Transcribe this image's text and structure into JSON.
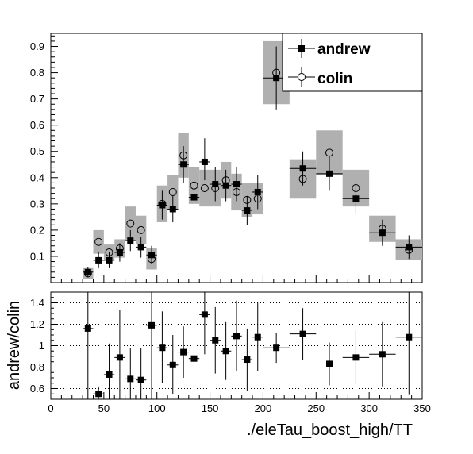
{
  "chart_data": [
    {
      "type": "scatter",
      "panel": "main",
      "xlim": [
        0,
        350
      ],
      "ylim": [
        0,
        0.95
      ],
      "yticks": [
        "0.1",
        "0.2",
        "0.3",
        "0.4",
        "0.5",
        "0.6",
        "0.7",
        "0.8",
        "0.9"
      ],
      "legend": {
        "position": "top-right",
        "entries": [
          "andrew",
          "colin"
        ]
      },
      "series": [
        {
          "name": "andrew",
          "marker": "filled-square",
          "points": [
            {
              "x": 35,
              "y": 0.04,
              "xerr": 5,
              "ylo": 0.02,
              "yhi": 0.06
            },
            {
              "x": 45,
              "y": 0.085,
              "xerr": 5,
              "ylo": 0.055,
              "yhi": 0.115
            },
            {
              "x": 55,
              "y": 0.085,
              "xerr": 5,
              "ylo": 0.055,
              "yhi": 0.115
            },
            {
              "x": 65,
              "y": 0.115,
              "xerr": 5,
              "ylo": 0.08,
              "yhi": 0.15
            },
            {
              "x": 75,
              "y": 0.16,
              "xerr": 5,
              "ylo": 0.12,
              "yhi": 0.2
            },
            {
              "x": 85,
              "y": 0.135,
              "xerr": 5,
              "ylo": 0.095,
              "yhi": 0.175
            },
            {
              "x": 95,
              "y": 0.105,
              "xerr": 5,
              "ylo": 0.07,
              "yhi": 0.14
            },
            {
              "x": 105,
              "y": 0.295,
              "xerr": 5,
              "ylo": 0.24,
              "yhi": 0.35
            },
            {
              "x": 115,
              "y": 0.28,
              "xerr": 5,
              "ylo": 0.23,
              "yhi": 0.33
            },
            {
              "x": 125,
              "y": 0.45,
              "xerr": 5,
              "ylo": 0.38,
              "yhi": 0.52
            },
            {
              "x": 135,
              "y": 0.325,
              "xerr": 5,
              "ylo": 0.27,
              "yhi": 0.38
            },
            {
              "x": 145,
              "y": 0.46,
              "xerr": 5,
              "ylo": 0.39,
              "yhi": 0.55
            },
            {
              "x": 155,
              "y": 0.375,
              "xerr": 5,
              "ylo": 0.31,
              "yhi": 0.44
            },
            {
              "x": 165,
              "y": 0.37,
              "xerr": 5,
              "ylo": 0.31,
              "yhi": 0.43
            },
            {
              "x": 175,
              "y": 0.375,
              "xerr": 5,
              "ylo": 0.31,
              "yhi": 0.44
            },
            {
              "x": 185,
              "y": 0.275,
              "xerr": 5,
              "ylo": 0.22,
              "yhi": 0.33
            },
            {
              "x": 195,
              "y": 0.345,
              "xerr": 5,
              "ylo": 0.28,
              "yhi": 0.41
            },
            {
              "x": 212.5,
              "y": 0.78,
              "xerr": 12.5,
              "ylo": 0.66,
              "yhi": 0.9
            },
            {
              "x": 237.5,
              "y": 0.435,
              "xerr": 12.5,
              "ylo": 0.37,
              "yhi": 0.5
            },
            {
              "x": 262.5,
              "y": 0.415,
              "xerr": 12.5,
              "ylo": 0.35,
              "yhi": 0.48
            },
            {
              "x": 287.5,
              "y": 0.32,
              "xerr": 12.5,
              "ylo": 0.26,
              "yhi": 0.38
            },
            {
              "x": 312.5,
              "y": 0.19,
              "xerr": 12.5,
              "ylo": 0.14,
              "yhi": 0.24
            },
            {
              "x": 337.5,
              "y": 0.135,
              "xerr": 12.5,
              "ylo": 0.09,
              "yhi": 0.18
            }
          ]
        },
        {
          "name": "colin",
          "marker": "open-circle",
          "points": [
            {
              "x": 35,
              "y": 0.035,
              "band": [
                0.015,
                0.055
              ]
            },
            {
              "x": 45,
              "y": 0.155,
              "band": [
                0.11,
                0.2
              ]
            },
            {
              "x": 55,
              "y": 0.115,
              "band": [
                0.085,
                0.145
              ]
            },
            {
              "x": 65,
              "y": 0.13,
              "band": [
                0.095,
                0.165
              ]
            },
            {
              "x": 75,
              "y": 0.225,
              "band": [
                0.16,
                0.29
              ]
            },
            {
              "x": 85,
              "y": 0.2,
              "band": [
                0.145,
                0.255
              ]
            },
            {
              "x": 95,
              "y": 0.09,
              "band": [
                0.05,
                0.13
              ]
            },
            {
              "x": 105,
              "y": 0.3,
              "band": [
                0.23,
                0.37
              ]
            },
            {
              "x": 115,
              "y": 0.345,
              "band": [
                0.28,
                0.41
              ]
            },
            {
              "x": 125,
              "y": 0.485,
              "band": [
                0.4,
                0.57
              ]
            },
            {
              "x": 135,
              "y": 0.37,
              "band": [
                0.3,
                0.44
              ]
            },
            {
              "x": 145,
              "y": 0.36,
              "band": [
                0.29,
                0.43
              ]
            },
            {
              "x": 155,
              "y": 0.36,
              "band": [
                0.29,
                0.43
              ]
            },
            {
              "x": 165,
              "y": 0.39,
              "band": [
                0.32,
                0.46
              ]
            },
            {
              "x": 175,
              "y": 0.345,
              "band": [
                0.275,
                0.415
              ]
            },
            {
              "x": 185,
              "y": 0.315,
              "band": [
                0.25,
                0.38
              ]
            },
            {
              "x": 195,
              "y": 0.32,
              "band": [
                0.26,
                0.38
              ]
            },
            {
              "x": 212.5,
              "y": 0.8,
              "band": [
                0.68,
                0.92
              ]
            },
            {
              "x": 237.5,
              "y": 0.395,
              "band": [
                0.32,
                0.47
              ]
            },
            {
              "x": 262.5,
              "y": 0.495,
              "band": [
                0.41,
                0.58
              ]
            },
            {
              "x": 287.5,
              "y": 0.36,
              "band": [
                0.29,
                0.43
              ]
            },
            {
              "x": 312.5,
              "y": 0.205,
              "band": [
                0.155,
                0.255
              ]
            },
            {
              "x": 337.5,
              "y": 0.125,
              "band": [
                0.085,
                0.165
              ]
            }
          ]
        }
      ]
    },
    {
      "type": "scatter",
      "panel": "ratio",
      "ylabel": "andrew/colin",
      "xlabel": "./eleTau_boost_high/TT",
      "xlim": [
        0,
        350
      ],
      "ylim": [
        0.5,
        1.5
      ],
      "xticks": [
        "0",
        "50",
        "100",
        "150",
        "200",
        "250",
        "300",
        "350"
      ],
      "yticks": [
        "0.6",
        "0.8",
        "1",
        "1.2",
        "1.4"
      ],
      "grid": "horizontal dotted",
      "points": [
        {
          "x": 35,
          "y": 1.16,
          "xerr": 5,
          "ylo": 0.5,
          "yhi": 1.5
        },
        {
          "x": 45,
          "y": 0.55,
          "xerr": 5,
          "ylo": 0.5,
          "yhi": 0.62
        },
        {
          "x": 55,
          "y": 0.73,
          "xerr": 5,
          "ylo": 0.5,
          "yhi": 1.02
        },
        {
          "x": 65,
          "y": 0.89,
          "xerr": 5,
          "ylo": 0.5,
          "yhi": 1.33
        },
        {
          "x": 75,
          "y": 0.69,
          "xerr": 5,
          "ylo": 0.5,
          "yhi": 0.98
        },
        {
          "x": 85,
          "y": 0.68,
          "xerr": 5,
          "ylo": 0.5,
          "yhi": 0.98
        },
        {
          "x": 95,
          "y": 1.19,
          "xerr": 5,
          "ylo": 0.5,
          "yhi": 1.5
        },
        {
          "x": 105,
          "y": 0.98,
          "xerr": 5,
          "ylo": 0.65,
          "yhi": 1.32
        },
        {
          "x": 115,
          "y": 0.82,
          "xerr": 5,
          "ylo": 0.55,
          "yhi": 1.1
        },
        {
          "x": 125,
          "y": 0.94,
          "xerr": 5,
          "ylo": 0.7,
          "yhi": 1.18
        },
        {
          "x": 135,
          "y": 0.88,
          "xerr": 5,
          "ylo": 0.6,
          "yhi": 1.16
        },
        {
          "x": 145,
          "y": 1.29,
          "xerr": 5,
          "ylo": 0.92,
          "yhi": 1.5
        },
        {
          "x": 155,
          "y": 1.05,
          "xerr": 5,
          "ylo": 0.74,
          "yhi": 1.36
        },
        {
          "x": 165,
          "y": 0.95,
          "xerr": 5,
          "ylo": 0.68,
          "yhi": 1.22
        },
        {
          "x": 175,
          "y": 1.09,
          "xerr": 5,
          "ylo": 0.76,
          "yhi": 1.42
        },
        {
          "x": 185,
          "y": 0.87,
          "xerr": 5,
          "ylo": 0.58,
          "yhi": 1.16
        },
        {
          "x": 195,
          "y": 1.08,
          "xerr": 5,
          "ylo": 0.76,
          "yhi": 1.4
        },
        {
          "x": 212.5,
          "y": 0.98,
          "xerr": 12.5,
          "ylo": 0.84,
          "yhi": 1.12
        },
        {
          "x": 237.5,
          "y": 1.11,
          "xerr": 12.5,
          "ylo": 0.87,
          "yhi": 1.35
        },
        {
          "x": 262.5,
          "y": 0.83,
          "xerr": 12.5,
          "ylo": 0.63,
          "yhi": 1.03
        },
        {
          "x": 287.5,
          "y": 0.89,
          "xerr": 12.5,
          "ylo": 0.64,
          "yhi": 1.14
        },
        {
          "x": 312.5,
          "y": 0.92,
          "xerr": 12.5,
          "ylo": 0.62,
          "yhi": 1.22
        },
        {
          "x": 337.5,
          "y": 1.08,
          "xerr": 12.5,
          "ylo": 0.54,
          "yhi": 1.5
        }
      ]
    }
  ]
}
